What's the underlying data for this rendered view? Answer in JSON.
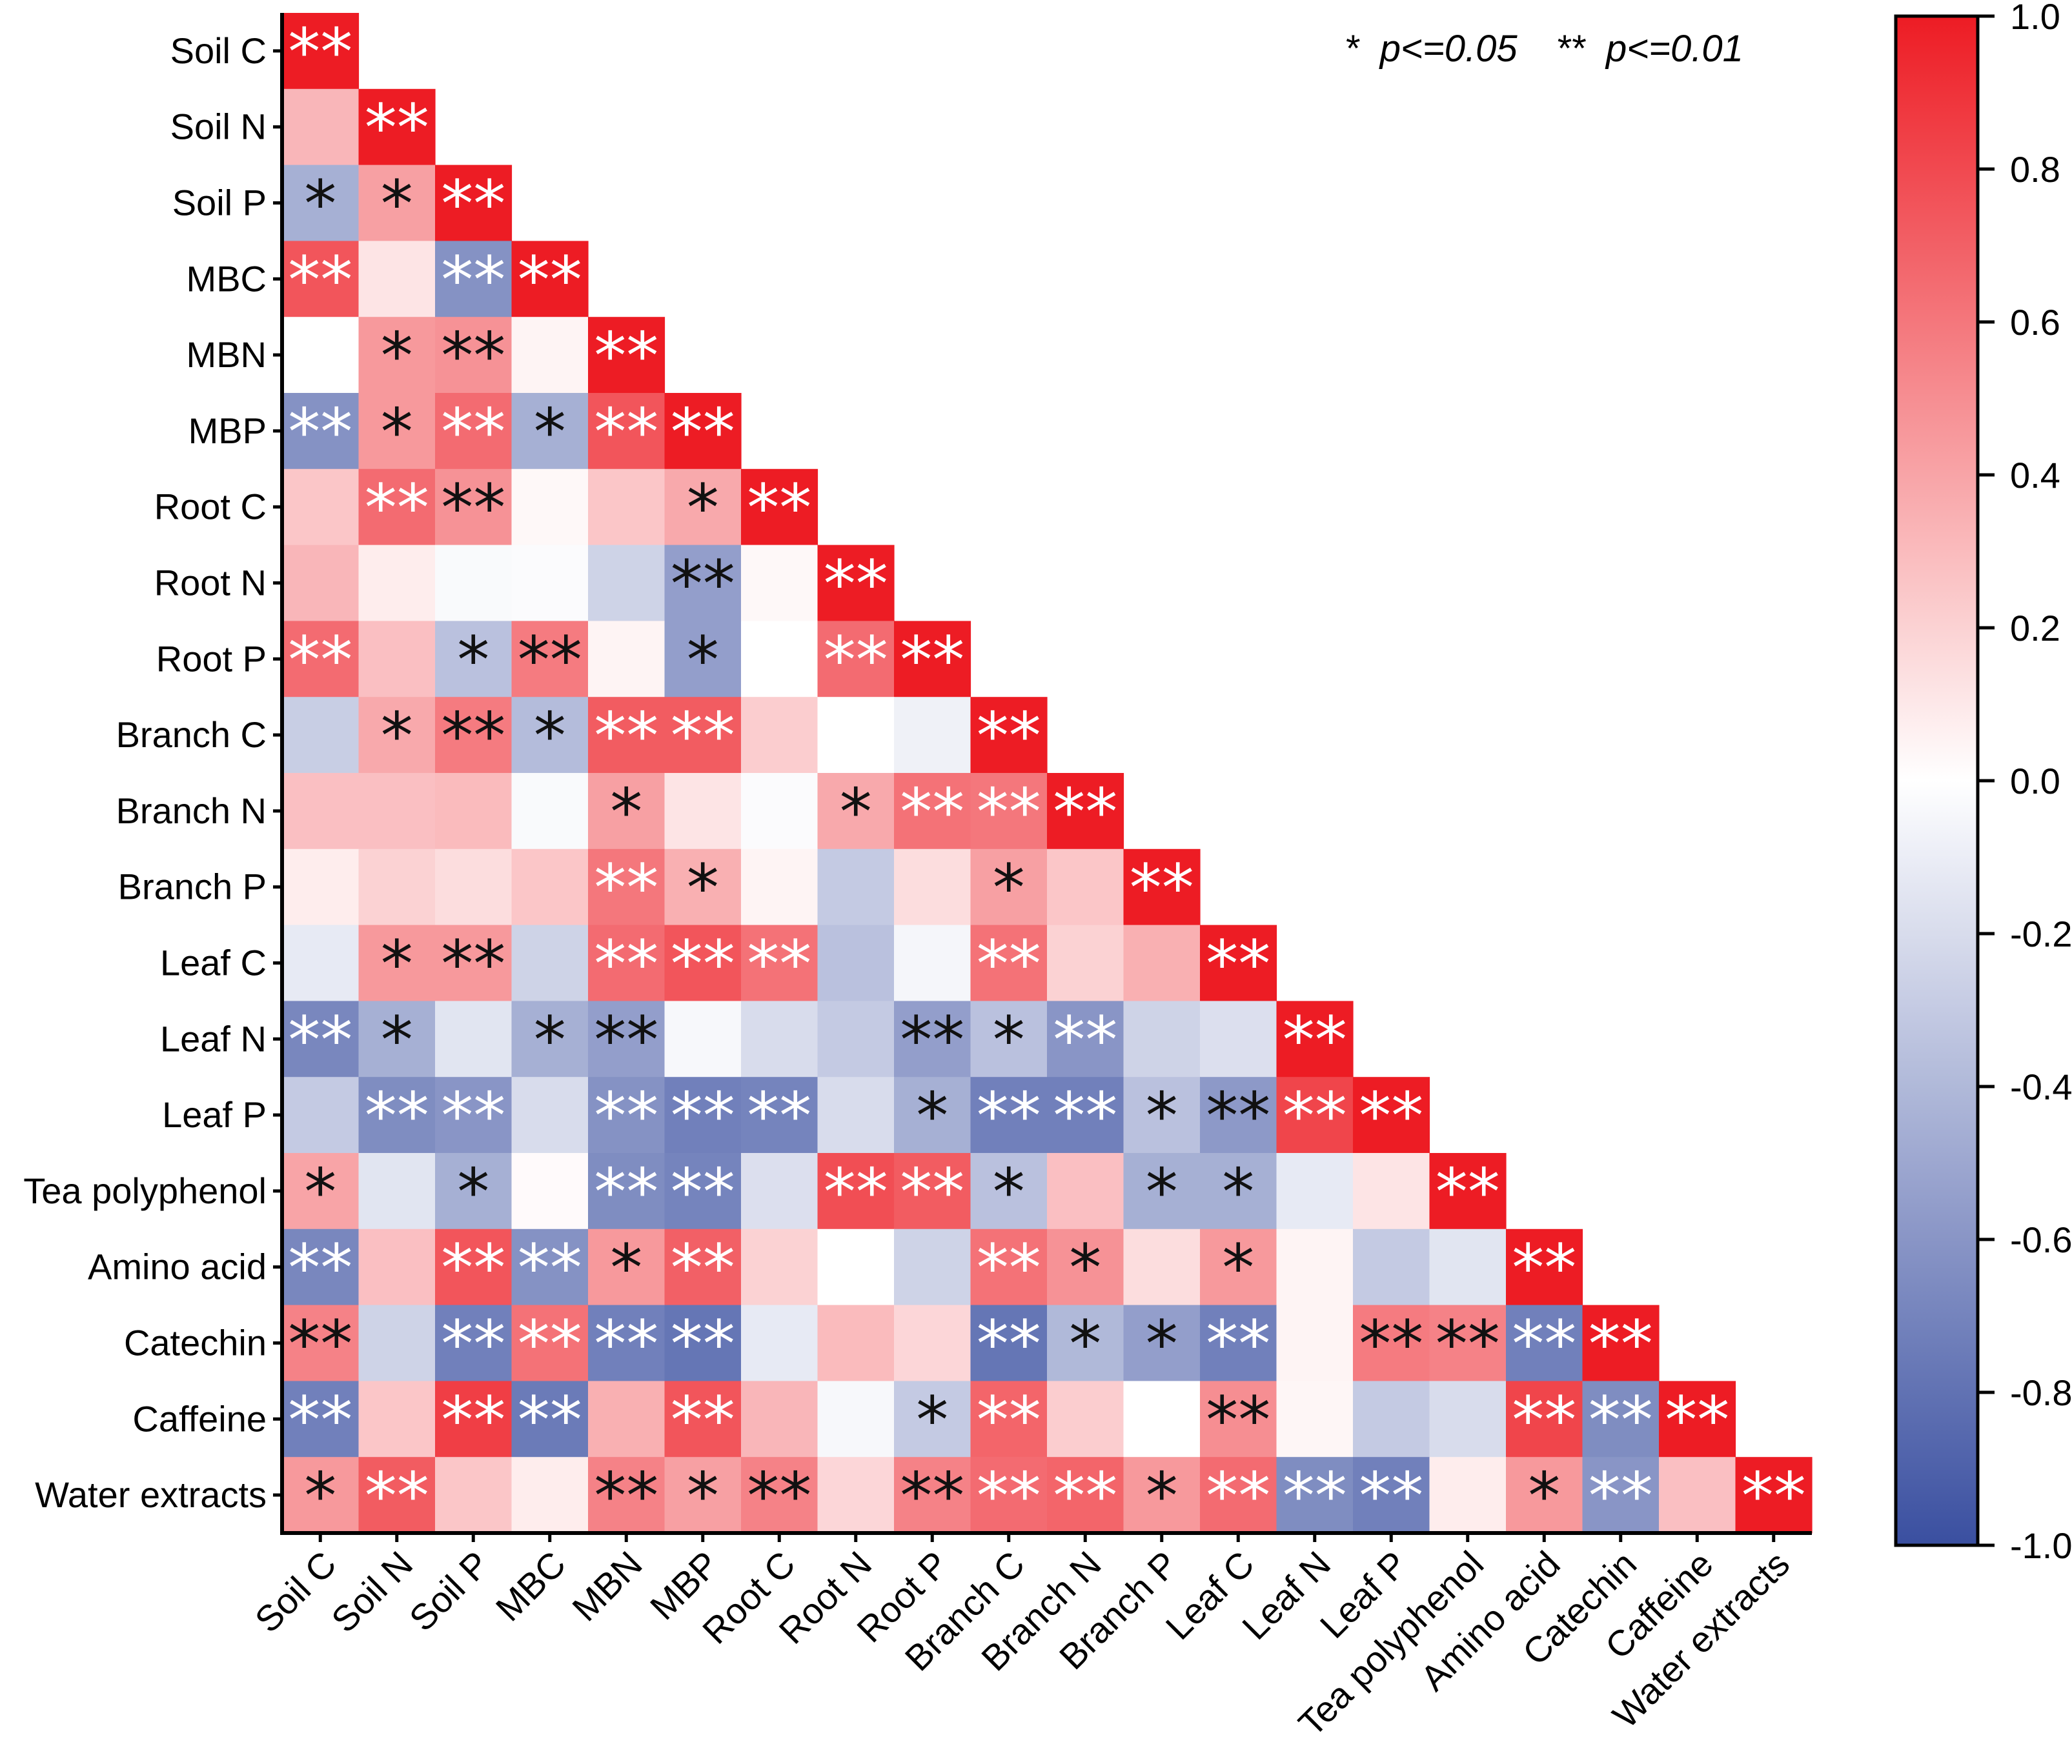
{
  "chart_data": {
    "type": "heatmap",
    "title": "",
    "variables": [
      "Soil C",
      "Soil N",
      "Soil P",
      "MBC",
      "MBN",
      "MBP",
      "Root C",
      "Root N",
      "Root P",
      "Branch C",
      "Branch N",
      "Branch P",
      "Leaf C",
      "Leaf N",
      "Leaf P",
      "Tea polyphenol",
      "Amino acid",
      "Catechin",
      "Caffeine",
      "Water extracts"
    ],
    "layout": "lower-triangle",
    "values": [
      [
        1.0
      ],
      [
        0.32,
        1.0
      ],
      [
        -0.45,
        0.42,
        1.0
      ],
      [
        0.75,
        0.12,
        -0.62,
        1.0
      ],
      [
        0.0,
        0.45,
        0.48,
        0.05,
        1.0
      ],
      [
        -0.62,
        0.45,
        0.65,
        -0.45,
        0.75,
        1.0
      ],
      [
        0.25,
        0.65,
        0.48,
        0.03,
        0.25,
        0.38,
        1.0
      ],
      [
        0.32,
        0.08,
        -0.03,
        -0.02,
        -0.25,
        -0.55,
        0.03,
        1.0
      ],
      [
        0.65,
        0.28,
        -0.35,
        0.58,
        0.05,
        -0.55,
        0.0,
        0.65,
        1.0
      ],
      [
        -0.28,
        0.38,
        0.58,
        -0.38,
        0.72,
        0.72,
        0.22,
        0.0,
        -0.08,
        1.0
      ],
      [
        0.28,
        0.28,
        0.3,
        -0.03,
        0.42,
        0.12,
        -0.02,
        0.38,
        0.62,
        0.6,
        1.0
      ],
      [
        0.08,
        0.2,
        0.15,
        0.25,
        0.6,
        0.35,
        0.05,
        -0.3,
        0.15,
        0.42,
        0.25,
        1.0
      ],
      [
        -0.12,
        0.45,
        0.45,
        -0.25,
        0.65,
        0.75,
        0.62,
        -0.35,
        -0.05,
        0.62,
        0.2,
        0.35,
        1.0
      ],
      [
        -0.68,
        -0.45,
        -0.15,
        -0.45,
        -0.55,
        -0.04,
        -0.2,
        -0.3,
        -0.55,
        -0.35,
        -0.6,
        -0.25,
        -0.18,
        1.0
      ],
      [
        -0.3,
        -0.65,
        -0.6,
        -0.2,
        -0.62,
        -0.72,
        -0.7,
        -0.2,
        -0.45,
        -0.72,
        -0.72,
        -0.35,
        -0.58,
        0.82,
        1.0
      ],
      [
        0.4,
        -0.15,
        -0.45,
        0.02,
        -0.65,
        -0.7,
        -0.18,
        0.78,
        0.72,
        -0.35,
        0.28,
        -0.45,
        -0.45,
        -0.12,
        0.12,
        1.0
      ],
      [
        -0.68,
        0.28,
        0.75,
        -0.62,
        0.45,
        0.7,
        0.2,
        0.0,
        -0.25,
        0.62,
        0.48,
        0.15,
        0.45,
        0.05,
        -0.3,
        -0.15,
        1.0
      ],
      [
        0.55,
        -0.25,
        -0.72,
        0.62,
        -0.72,
        -0.78,
        -0.12,
        0.3,
        0.18,
        -0.78,
        -0.4,
        -0.55,
        -0.72,
        0.05,
        0.58,
        0.55,
        -0.72,
        1.0
      ],
      [
        -0.72,
        0.25,
        0.85,
        -0.75,
        0.35,
        0.75,
        0.32,
        -0.04,
        -0.3,
        0.68,
        0.22,
        0.0,
        0.5,
        0.04,
        -0.3,
        -0.2,
        0.82,
        -0.65,
        1.0
      ],
      [
        0.45,
        0.72,
        0.25,
        0.08,
        0.55,
        0.42,
        0.55,
        0.18,
        0.55,
        0.65,
        0.68,
        0.45,
        0.65,
        -0.65,
        -0.72,
        0.08,
        0.45,
        -0.6,
        0.28,
        1.0
      ]
    ],
    "significance": [
      [
        "**"
      ],
      [
        "",
        "**"
      ],
      [
        "*",
        "*",
        "**"
      ],
      [
        "**",
        "",
        "**",
        "**"
      ],
      [
        "",
        "*",
        "**",
        "",
        "**"
      ],
      [
        "**",
        "*",
        "**",
        "*",
        "**",
        "**"
      ],
      [
        "",
        "**",
        "**",
        "",
        "",
        "*",
        "**"
      ],
      [
        "",
        "",
        "",
        "",
        "",
        "**",
        "",
        "**"
      ],
      [
        "**",
        "",
        "*",
        "**",
        "",
        "*",
        "",
        "**",
        "**"
      ],
      [
        "",
        "*",
        "**",
        "*",
        "**",
        "**",
        "",
        "",
        "",
        "**"
      ],
      [
        "",
        "",
        "",
        "",
        "*",
        "",
        "",
        "*",
        "**",
        "**",
        "**"
      ],
      [
        "",
        "",
        "",
        "",
        "**",
        "*",
        "",
        "",
        "",
        "*",
        "",
        "**"
      ],
      [
        "",
        "*",
        "**",
        "",
        "**",
        "**",
        "**",
        "",
        "",
        "**",
        "",
        "",
        "**"
      ],
      [
        "**",
        "*",
        "",
        "*",
        "**",
        "",
        "",
        "",
        "**",
        "*",
        "**",
        "",
        "",
        "**"
      ],
      [
        "",
        "**",
        "**",
        "",
        "**",
        "**",
        "**",
        "",
        "*",
        "**",
        "**",
        "*",
        "**",
        "**",
        "**"
      ],
      [
        "*",
        "",
        "*",
        "",
        "**",
        "**",
        "",
        "**",
        "**",
        "*",
        "",
        "*",
        "*",
        "",
        "",
        "**"
      ],
      [
        "**",
        "",
        "**",
        "**",
        "*",
        "**",
        "",
        "",
        "",
        "**",
        "*",
        "",
        "*",
        "",
        "",
        "",
        "**"
      ],
      [
        "**",
        "",
        "**",
        "**",
        "**",
        "**",
        "",
        "",
        "",
        "**",
        "*",
        "*",
        "**",
        "",
        "**",
        "**",
        "**",
        "**"
      ],
      [
        "**",
        "",
        "**",
        "**",
        "",
        "**",
        "",
        "",
        "*",
        "**",
        "",
        "",
        "**",
        "",
        "",
        "",
        "**",
        "**",
        "**"
      ],
      [
        "*",
        "**",
        "",
        "",
        "**",
        "*",
        "**",
        "",
        "**",
        "**",
        "**",
        "*",
        "**",
        "**",
        "**",
        "",
        "*",
        "**",
        "",
        "**"
      ]
    ],
    "star_colors": {
      "light": "#ffffff",
      "dark": "#111111"
    },
    "color_scale": {
      "min": -1.0,
      "max": 1.0,
      "low_color": "#3a4fa0",
      "mid_color": "#ffffff",
      "high_color": "#ed1c24",
      "ticks": [
        "1.0",
        "0.8",
        "0.6",
        "0.4",
        "0.2",
        "0.0",
        "-0.2",
        "-0.4",
        "-0.6",
        "-0.8",
        "-1.0"
      ]
    },
    "legend_note": {
      "sig1_marker": "*",
      "sig1_text": "p<=0.05",
      "sig2_marker": "**",
      "sig2_text": "p<=0.01",
      "position": "top-right"
    }
  }
}
